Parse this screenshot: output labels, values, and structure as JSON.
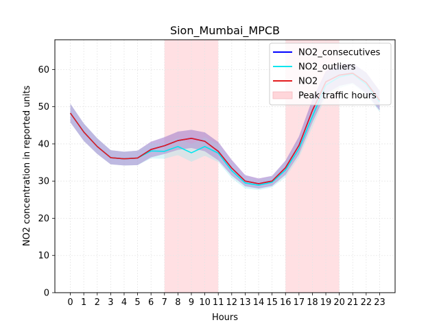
{
  "chart_data": {
    "type": "line",
    "title": "Sion_Mumbai_MPCB",
    "xlabel": "Hours",
    "ylabel": "NO2 concentration in reported units",
    "x": [
      0,
      1,
      2,
      3,
      4,
      5,
      6,
      7,
      8,
      9,
      10,
      11,
      12,
      13,
      14,
      15,
      16,
      17,
      18,
      19,
      20,
      21,
      22,
      23
    ],
    "xlim": [
      -1.15,
      24.15
    ],
    "ylim": [
      0,
      68
    ],
    "yticks": [
      0,
      10,
      20,
      30,
      40,
      50,
      60
    ],
    "grid": true,
    "legend_position": "top-right",
    "peak_traffic_bands": [
      [
        7,
        11
      ],
      [
        16,
        20
      ]
    ],
    "series": [
      {
        "name": "NO2_consecutives",
        "color": "#0000ff",
        "band_color": "#7070d8",
        "values": [
          48.3,
          43.2,
          39.3,
          36.3,
          36.0,
          36.2,
          38.5,
          39.5,
          40.9,
          41.5,
          40.7,
          38.0,
          33.5,
          30.0,
          29.3,
          30.0,
          33.6,
          39.6,
          49.0,
          56.7,
          58.5,
          59.0,
          56.5,
          51.7
        ],
        "lower": [
          45.8,
          40.8,
          37.3,
          34.5,
          34.2,
          34.3,
          36.4,
          37.3,
          38.4,
          38.9,
          38.0,
          35.6,
          31.5,
          28.6,
          28.0,
          28.7,
          31.7,
          37.2,
          45.8,
          53.5,
          55.6,
          56.4,
          53.7,
          49.0
        ],
        "upper": [
          50.8,
          45.5,
          41.5,
          38.3,
          37.9,
          38.2,
          40.6,
          41.8,
          43.3,
          43.8,
          43.1,
          40.5,
          35.7,
          31.6,
          30.7,
          31.4,
          35.5,
          42.0,
          52.0,
          59.6,
          61.4,
          61.6,
          59.2,
          54.3
        ]
      },
      {
        "name": "NO2_outliers",
        "color": "#00e5ee",
        "band_color": "#9ee8ee",
        "values": [
          48.3,
          43.2,
          39.3,
          36.3,
          36.0,
          36.2,
          38.1,
          38.0,
          39.3,
          37.6,
          39.3,
          37.5,
          32.8,
          29.5,
          28.9,
          29.7,
          33.0,
          38.7,
          47.4,
          55.8,
          58.0,
          58.8,
          56.0,
          51.3
        ],
        "lower": [
          45.8,
          40.8,
          37.3,
          34.5,
          34.2,
          34.3,
          36.1,
          36.0,
          37.0,
          35.2,
          36.8,
          35.1,
          30.8,
          28.0,
          27.6,
          28.3,
          31.0,
          36.3,
          44.5,
          52.8,
          55.0,
          56.1,
          53.2,
          48.6
        ],
        "upper": [
          50.8,
          45.5,
          41.5,
          38.3,
          37.9,
          38.2,
          40.2,
          40.1,
          41.6,
          40.0,
          41.8,
          39.8,
          34.9,
          31.0,
          30.2,
          31.1,
          35.0,
          41.1,
          50.3,
          58.8,
          61.0,
          61.4,
          58.8,
          54.0
        ]
      },
      {
        "name": "NO2",
        "color": "#e31a1c",
        "band_color": "#c88fc8",
        "values": [
          48.3,
          43.2,
          39.3,
          36.3,
          36.0,
          36.2,
          38.5,
          39.5,
          40.9,
          41.5,
          40.7,
          38.0,
          33.5,
          30.0,
          29.3,
          30.0,
          33.6,
          39.6,
          49.0,
          56.7,
          58.5,
          59.0,
          56.5,
          51.7
        ],
        "lower": [
          45.8,
          40.8,
          37.3,
          34.5,
          34.2,
          34.3,
          36.4,
          37.3,
          38.4,
          38.9,
          38.0,
          35.6,
          31.5,
          28.6,
          28.0,
          28.7,
          31.7,
          37.2,
          45.8,
          53.5,
          55.6,
          56.4,
          53.7,
          49.0
        ],
        "upper": [
          50.8,
          45.5,
          41.5,
          38.3,
          37.9,
          38.2,
          40.6,
          41.8,
          43.3,
          43.8,
          43.1,
          40.5,
          35.7,
          31.6,
          30.7,
          31.4,
          35.5,
          42.0,
          52.0,
          59.6,
          61.4,
          61.6,
          59.2,
          54.3
        ]
      }
    ],
    "legend": [
      {
        "label": "NO2_consecutives",
        "kind": "line",
        "color": "#0000ff"
      },
      {
        "label": "NO2_outliers",
        "kind": "line",
        "color": "#00e5ee"
      },
      {
        "label": "NO2",
        "kind": "line",
        "color": "#e31a1c"
      },
      {
        "label": "Peak traffic hours",
        "kind": "patch",
        "color": "#ffd6da"
      }
    ]
  }
}
